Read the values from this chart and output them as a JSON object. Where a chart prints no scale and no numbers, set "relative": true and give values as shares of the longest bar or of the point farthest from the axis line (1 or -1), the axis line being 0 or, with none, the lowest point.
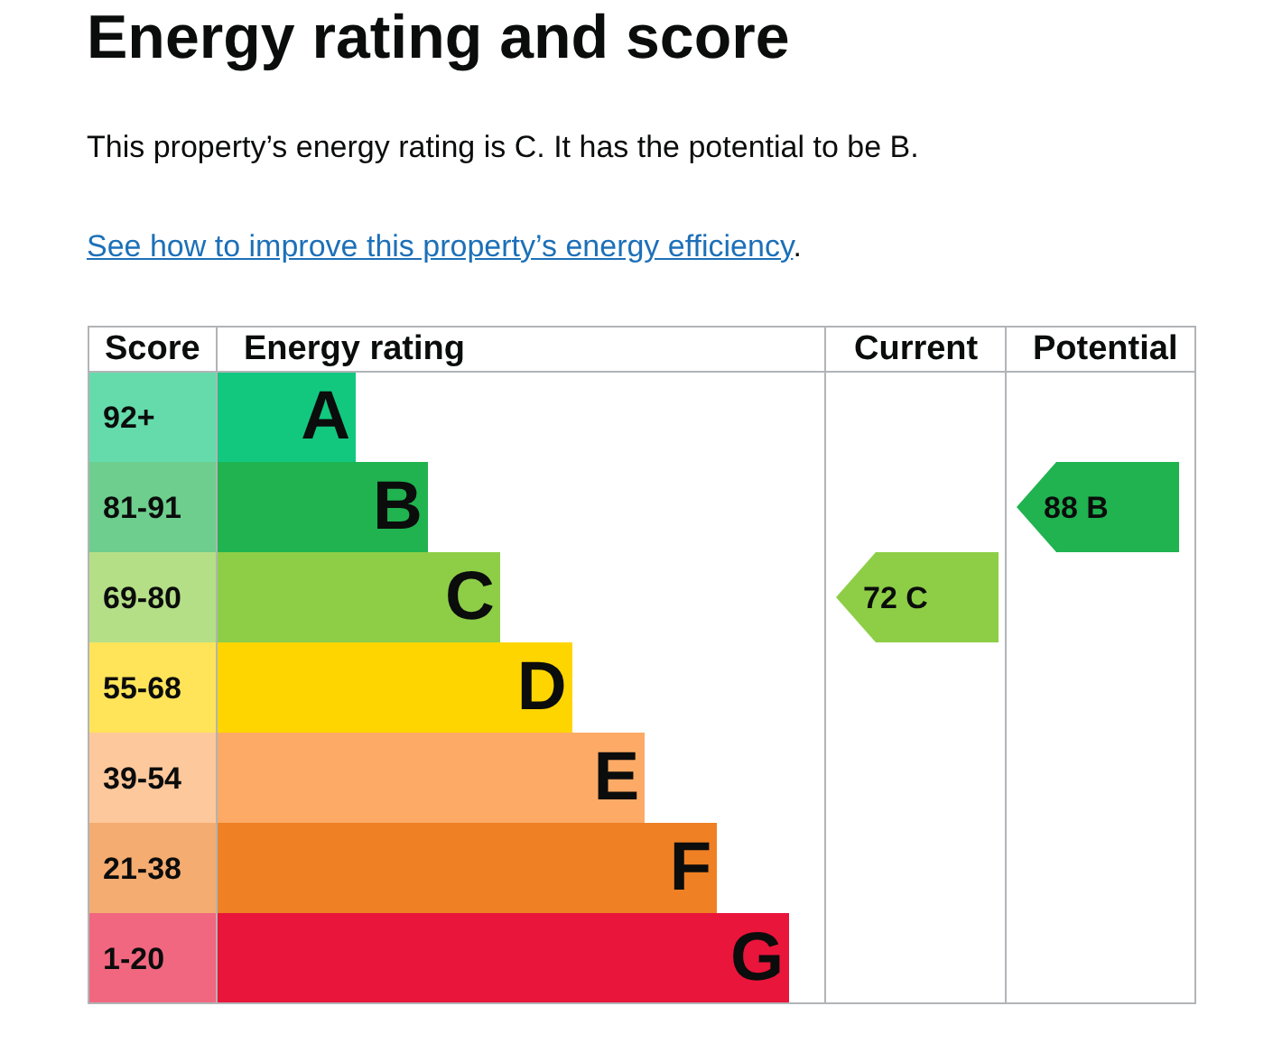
{
  "chart_data": {
    "type": "bar",
    "orientation": "horizontal",
    "relative": true,
    "title": "Energy rating and score",
    "subtitle": "This property’s energy rating is C. It has the potential to be B.",
    "categories": [
      "A",
      "B",
      "C",
      "D",
      "E",
      "F",
      "G"
    ],
    "values": [
      0.243,
      0.369,
      0.495,
      0.621,
      0.748,
      0.874,
      1
    ],
    "colors": [
      "#12c87f",
      "#20b350",
      "#8dce46",
      "#ffd500",
      "#fcaa65",
      "#ef8023",
      "#e9153b"
    ],
    "annotations": [
      "See how to improve this property’s energy efficiency.",
      "Score",
      "Energy rating",
      "Current",
      "Potential",
      "92+",
      "81-91",
      "69-80",
      "55-68",
      "39-54",
      "21-38",
      "1-20",
      "72 C",
      "88 B"
    ],
    "grid": false,
    "legend": false
  }
}
